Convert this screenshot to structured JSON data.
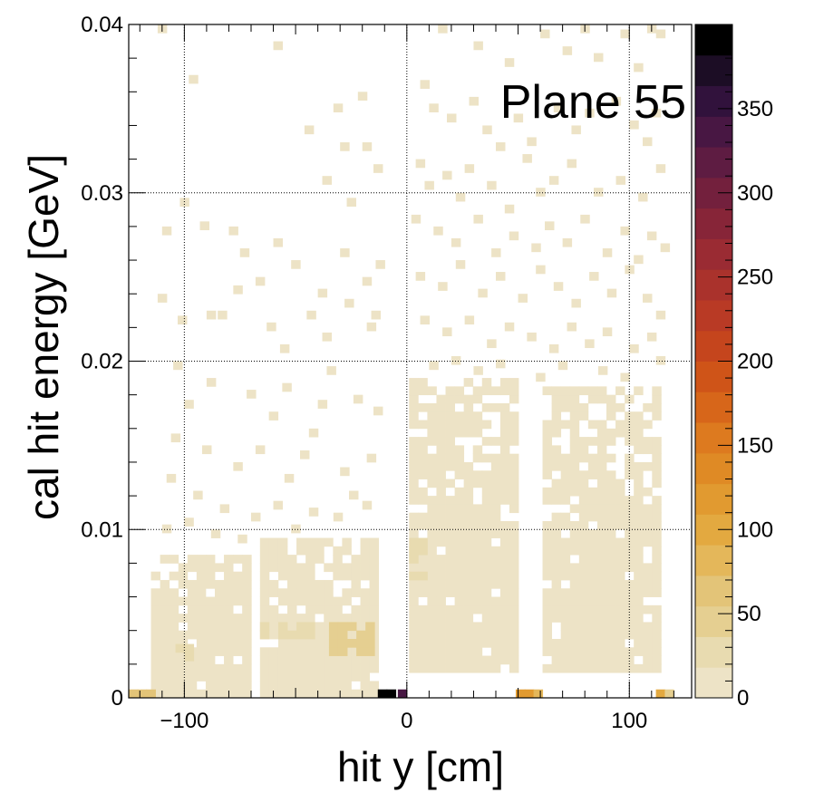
{
  "chart_data": {
    "type": "heatmap",
    "title": "Plane 55",
    "xlabel": "hit y [cm]",
    "ylabel": "cal hit energy [GeV]",
    "xlim": [
      -125,
      128
    ],
    "ylim": [
      0,
      0.04
    ],
    "x_ticks": [
      -100,
      0,
      100
    ],
    "x_tick_labels": [
      "−100",
      "0",
      "100"
    ],
    "y_ticks": [
      0,
      0.01,
      0.02,
      0.03,
      0.04
    ],
    "y_tick_labels": [
      "0",
      "0.01",
      "0.02",
      "0.03",
      "0.04"
    ],
    "grid": true,
    "colorbar": {
      "min": 0,
      "max": 400,
      "ticks": [
        0,
        50,
        100,
        150,
        200,
        250,
        300,
        350
      ],
      "tick_labels": [
        "0",
        "50",
        "100",
        "150",
        "200",
        "250",
        "300",
        "350"
      ],
      "palette": [
        "#ede3c6",
        "#e8dbb0",
        "#e5cf91",
        "#e3c478",
        "#e4b75a",
        "#e3a940",
        "#e19a30",
        "#df8a25",
        "#dd7a1f",
        "#d7661a",
        "#cf5418",
        "#c5451d",
        "#b93a25",
        "#aa322c",
        "#9a2b33",
        "#872538",
        "#73203d",
        "#5e1c42",
        "#481743",
        "#31123c",
        "#1c0d25",
        "#000000"
      ]
    },
    "bin_width_x": 4.1,
    "bin_width_y": 0.0005,
    "bands": [
      {
        "x_range": [
          -115,
          -70
        ],
        "y_range": [
          0,
          0.0085
        ],
        "approx_count": 10
      },
      {
        "x_range": [
          -66,
          -14
        ],
        "y_range": [
          0,
          0.0095
        ],
        "approx_count": 12
      },
      {
        "x_range": [
          1,
          48
        ],
        "y_range": [
          0.0015,
          0.019
        ],
        "approx_count": 10
      },
      {
        "x_range": [
          61,
          112
        ],
        "y_range": [
          0.0015,
          0.0185
        ],
        "approx_count": 10
      }
    ],
    "dense_regions": [
      {
        "x_range": [
          -66,
          -45
        ],
        "y_range": [
          0.0035,
          0.0042
        ],
        "approx_count": 30
      },
      {
        "x_range": [
          -35,
          -15
        ],
        "y_range": [
          0.0025,
          0.0045
        ],
        "approx_count": 50
      },
      {
        "x_range": [
          -104,
          -96
        ],
        "y_range": [
          0.0022,
          0.0032
        ],
        "approx_count": 25
      },
      {
        "x_range": [
          1,
          8
        ],
        "y_range": [
          0.007,
          0.0092
        ],
        "approx_count": 22
      }
    ],
    "zero_energy_bins": [
      {
        "x": -123,
        "value": 55
      },
      {
        "x": -119,
        "value": 60
      },
      {
        "x": -115,
        "value": 58
      },
      {
        "x": -11,
        "value": 400
      },
      {
        "x": -7,
        "value": 400
      },
      {
        "x": -2,
        "value": 340
      },
      {
        "x": 51,
        "value": 110
      },
      {
        "x": 55,
        "value": 115
      },
      {
        "x": 59,
        "value": 90
      },
      {
        "x": 114,
        "value": 95
      },
      {
        "x": 118,
        "value": 45
      }
    ],
    "sparse_points": [
      [
        -112,
        0.0395
      ],
      [
        -98,
        0.0365
      ],
      [
        -60,
        0.0385
      ],
      [
        -46,
        0.0335
      ],
      [
        -38,
        0.0305
      ],
      [
        -33,
        0.0348
      ],
      [
        -30,
        0.0325
      ],
      [
        -22,
        0.0355
      ],
      [
        -20,
        0.0325
      ],
      [
        -15,
        0.0312
      ],
      [
        -27,
        0.0292
      ],
      [
        -110,
        0.0275
      ],
      [
        -102,
        0.0292
      ],
      [
        -93,
        0.0278
      ],
      [
        -80,
        0.0275
      ],
      [
        -75,
        0.0262
      ],
      [
        -68,
        0.0245
      ],
      [
        -60,
        0.0268
      ],
      [
        -52,
        0.0255
      ],
      [
        -40,
        0.0238
      ],
      [
        -30,
        0.0262
      ],
      [
        -20,
        0.0245
      ],
      [
        -14,
        0.0255
      ],
      [
        -18,
        0.0218
      ],
      [
        -112,
        0.0235
      ],
      [
        -103,
        0.0222
      ],
      [
        -90,
        0.0225
      ],
      [
        -78,
        0.024
      ],
      [
        -85,
        0.0225
      ],
      [
        -57,
        0.0205
      ],
      [
        -45,
        0.0225
      ],
      [
        -38,
        0.0212
      ],
      [
        -28,
        0.0232
      ],
      [
        -16,
        0.0225
      ],
      [
        -63,
        0.0218
      ],
      [
        -105,
        0.0195
      ],
      [
        -100,
        0.0172
      ],
      [
        -90,
        0.0185
      ],
      [
        -72,
        0.0178
      ],
      [
        -62,
        0.0165
      ],
      [
        -56,
        0.0182
      ],
      [
        -44,
        0.0155
      ],
      [
        -36,
        0.0192
      ],
      [
        -24,
        0.0175
      ],
      [
        -15,
        0.0168
      ],
      [
        -40,
        0.0172
      ],
      [
        -106,
        0.0152
      ],
      [
        -92,
        0.0145
      ],
      [
        -78,
        0.0135
      ],
      [
        -68,
        0.0145
      ],
      [
        -55,
        0.0128
      ],
      [
        -48,
        0.0142
      ],
      [
        -30,
        0.0132
      ],
      [
        -18,
        0.014
      ],
      [
        -26,
        0.0118
      ],
      [
        -108,
        0.0128
      ],
      [
        -96,
        0.0118
      ],
      [
        -84,
        0.011
      ],
      [
        -70,
        0.0105
      ],
      [
        -60,
        0.0112
      ],
      [
        -44,
        0.0108
      ],
      [
        -33,
        0.0105
      ],
      [
        -20,
        0.0112
      ],
      [
        -110,
        0.0098
      ],
      [
        -88,
        0.0095
      ],
      [
        -76,
        0.0092
      ],
      [
        -52,
        0.0098
      ],
      [
        -100,
        0.0102
      ],
      [
        14,
        0.0395
      ],
      [
        30,
        0.0385
      ],
      [
        44,
        0.0375
      ],
      [
        60,
        0.0392
      ],
      [
        70,
        0.0382
      ],
      [
        78,
        0.0395
      ],
      [
        84,
        0.0378
      ],
      [
        96,
        0.0392
      ],
      [
        102,
        0.0372
      ],
      [
        108,
        0.0395
      ],
      [
        112,
        0.0392
      ],
      [
        6,
        0.0362
      ],
      [
        10,
        0.0348
      ],
      [
        18,
        0.0342
      ],
      [
        28,
        0.0352
      ],
      [
        34,
        0.0335
      ],
      [
        40,
        0.0325
      ],
      [
        48,
        0.0342
      ],
      [
        54,
        0.0328
      ],
      [
        66,
        0.0348
      ],
      [
        74,
        0.0335
      ],
      [
        80,
        0.0345
      ],
      [
        92,
        0.0352
      ],
      [
        100,
        0.0338
      ],
      [
        106,
        0.0328
      ],
      [
        110,
        0.0345
      ],
      [
        4,
        0.0315
      ],
      [
        8,
        0.0302
      ],
      [
        16,
        0.0308
      ],
      [
        22,
        0.0295
      ],
      [
        26,
        0.0312
      ],
      [
        36,
        0.0302
      ],
      [
        44,
        0.0288
      ],
      [
        52,
        0.0318
      ],
      [
        58,
        0.0298
      ],
      [
        64,
        0.0305
      ],
      [
        72,
        0.0315
      ],
      [
        84,
        0.0298
      ],
      [
        94,
        0.0305
      ],
      [
        104,
        0.0295
      ],
      [
        112,
        0.0312
      ],
      [
        2,
        0.0282
      ],
      [
        12,
        0.0275
      ],
      [
        20,
        0.0268
      ],
      [
        30,
        0.0282
      ],
      [
        38,
        0.0262
      ],
      [
        46,
        0.0272
      ],
      [
        56,
        0.0265
      ],
      [
        62,
        0.0278
      ],
      [
        70,
        0.0268
      ],
      [
        78,
        0.0282
      ],
      [
        88,
        0.0262
      ],
      [
        96,
        0.0275
      ],
      [
        102,
        0.0258
      ],
      [
        108,
        0.0272
      ],
      [
        114,
        0.0265
      ],
      [
        4,
        0.0248
      ],
      [
        14,
        0.0242
      ],
      [
        22,
        0.0255
      ],
      [
        32,
        0.0238
      ],
      [
        40,
        0.0248
      ],
      [
        50,
        0.0235
      ],
      [
        58,
        0.0252
      ],
      [
        66,
        0.0242
      ],
      [
        74,
        0.0232
      ],
      [
        82,
        0.0248
      ],
      [
        90,
        0.0238
      ],
      [
        98,
        0.0252
      ],
      [
        106,
        0.0235
      ],
      [
        112,
        0.0225
      ],
      [
        6,
        0.0222
      ],
      [
        16,
        0.0215
      ],
      [
        26,
        0.0222
      ],
      [
        36,
        0.0208
      ],
      [
        44,
        0.0218
      ],
      [
        54,
        0.0212
      ],
      [
        64,
        0.0205
      ],
      [
        72,
        0.0218
      ],
      [
        80,
        0.0208
      ],
      [
        88,
        0.0215
      ],
      [
        100,
        0.0205
      ],
      [
        108,
        0.0212
      ],
      [
        112,
        0.0198
      ],
      [
        10,
        0.0195
      ],
      [
        20,
        0.0198
      ],
      [
        30,
        0.0192
      ],
      [
        40,
        0.0196
      ],
      [
        58,
        0.0188
      ],
      [
        68,
        0.0195
      ],
      [
        86,
        0.0192
      ],
      [
        96,
        0.0188
      ]
    ]
  }
}
